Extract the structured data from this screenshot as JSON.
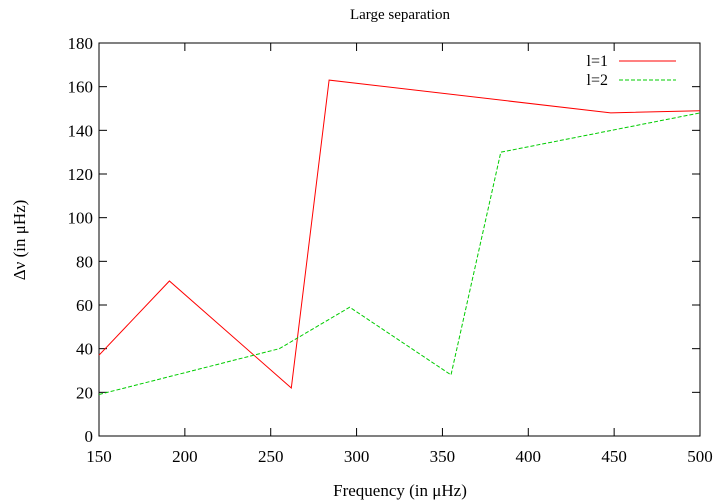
{
  "chart_data": {
    "type": "line",
    "title": "Large separation",
    "xlabel": "Frequency (in μHz)",
    "ylabel": "Δν (in μHz)",
    "xlim": [
      150,
      500
    ],
    "ylim": [
      0,
      180
    ],
    "xticks": [
      150,
      200,
      250,
      300,
      350,
      400,
      450,
      500
    ],
    "yticks": [
      0,
      20,
      40,
      60,
      80,
      100,
      120,
      140,
      160,
      180
    ],
    "grid": false,
    "legend_position": "top-right",
    "series": [
      {
        "name": "l=1",
        "color": "#ff0000",
        "dash": "solid",
        "x": [
          150,
          191,
          262,
          284,
          448,
          500
        ],
        "y": [
          37,
          71,
          22,
          163,
          148,
          149
        ]
      },
      {
        "name": "l=2",
        "color": "#00cc00",
        "dash": "dashed",
        "x": [
          150,
          255,
          296,
          355,
          384,
          500
        ],
        "y": [
          19,
          40,
          59,
          28,
          130,
          148
        ]
      }
    ]
  }
}
